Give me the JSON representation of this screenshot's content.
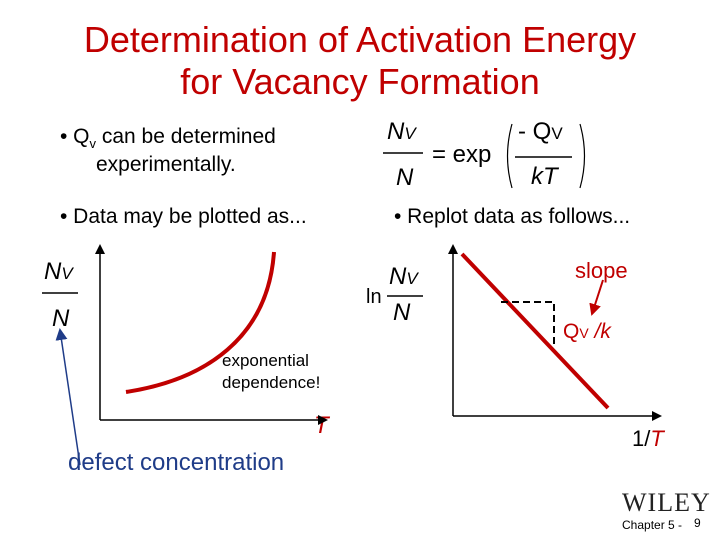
{
  "title": {
    "line1": "Determination of Activation Energy",
    "line2": "for Vacancy Formation"
  },
  "bullets": {
    "b1_pre": "• Q",
    "b1_sub": "v",
    "b1_rest": " can be determined",
    "b1_line2": "experimentally.",
    "b2": "• Data may be plotted as...",
    "b3": "• Replot data as follows..."
  },
  "equation": {
    "lhs_num": "N",
    "lhs_num_sub": "V",
    "lhs_den": "N",
    "eq_exp": "= exp",
    "rhs_num_minus": "- Q",
    "rhs_num_sub": "V",
    "rhs_den": "kT"
  },
  "left_plot": {
    "ylabel_num": "N",
    "ylabel_num_sub": "V",
    "ylabel_den": "N",
    "annotation_line1": "exponential",
    "annotation_line2": "dependence!",
    "xlabel": "T",
    "callout": "defect concentration"
  },
  "right_plot": {
    "ylabel_ln": "ln",
    "ylabel_num": "N",
    "ylabel_num_sub": "V",
    "ylabel_den": "N",
    "slope_label": "slope",
    "slope_value_q": "Q",
    "slope_value_sub": "V",
    "slope_value_rest": " /k",
    "xlabel_pre": "1/",
    "xlabel_var": "T"
  },
  "footer": {
    "logo": "WILEY",
    "chapter": "Chapter 5 -",
    "page": "9"
  },
  "colors": {
    "title": "#c00000",
    "curve": "#c00000",
    "arrow": "#1f3c88",
    "axes": "#000000"
  }
}
